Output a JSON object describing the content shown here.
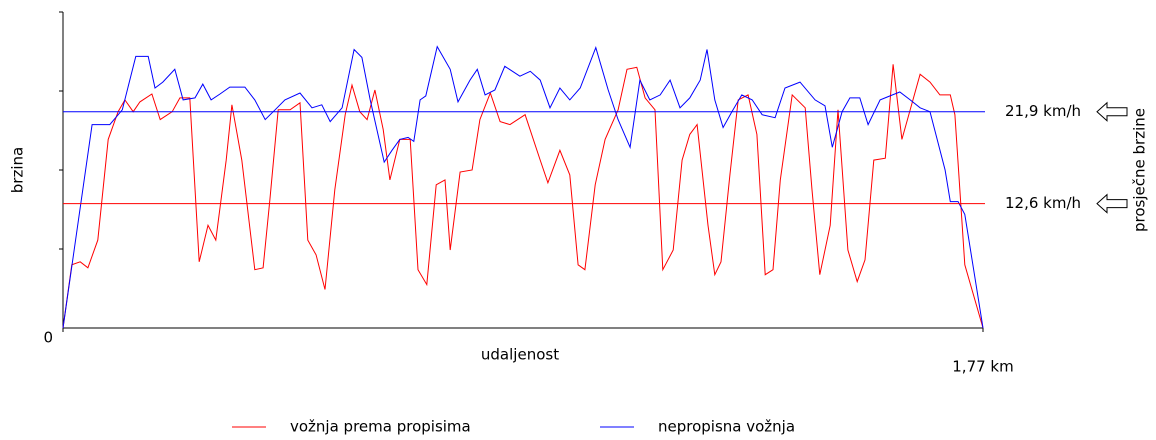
{
  "chart_data": {
    "type": "line",
    "ylabel": "brzina",
    "xlabel": "udaljenost",
    "average_label": "prosječne brzine",
    "xlim": [
      0,
      1.77
    ],
    "xticks": [
      0,
      {
        "value": 1.77,
        "label": "1,77 km"
      }
    ],
    "ylim": [
      0,
      32
    ],
    "yticks": [
      8,
      16,
      24,
      32
    ],
    "averages": [
      {
        "value": 21.9,
        "label": "21,9 km/h",
        "color": "#0000ff"
      },
      {
        "value": 12.6,
        "label": "12,6 km/h",
        "color": "#ff0000"
      }
    ],
    "series": [
      {
        "name": "vožnja prema propisima",
        "color": "#ff0000",
        "x": [
          0,
          0.017,
          0.033,
          0.048,
          0.067,
          0.087,
          0.106,
          0.119,
          0.135,
          0.148,
          0.171,
          0.187,
          0.21,
          0.225,
          0.244,
          0.262,
          0.279,
          0.294,
          0.314,
          0.325,
          0.344,
          0.369,
          0.385,
          0.398,
          0.414,
          0.437,
          0.456,
          0.471,
          0.487,
          0.504,
          0.523,
          0.543,
          0.556,
          0.571,
          0.585,
          0.6,
          0.616,
          0.629,
          0.648,
          0.668,
          0.683,
          0.7,
          0.718,
          0.735,
          0.745,
          0.764,
          0.787,
          0.802,
          0.822,
          0.841,
          0.86,
          0.889,
          0.918,
          0.933,
          0.956,
          0.975,
          0.991,
          1.004,
          1.024,
          1.043,
          1.068,
          1.085,
          1.104,
          1.12,
          1.139,
          1.154,
          1.174,
          1.191,
          1.206,
          1.22,
          1.241,
          1.254,
          1.266,
          1.283,
          1.299,
          1.318,
          1.335,
          1.351,
          1.366,
          1.38,
          1.403,
          1.428,
          1.441,
          1.456,
          1.476,
          1.491,
          1.51,
          1.528,
          1.543,
          1.56,
          1.582,
          1.597,
          1.614,
          1.63,
          1.649,
          1.668,
          1.687,
          1.707,
          1.716,
          1.735,
          1.77
        ],
        "values": [
          0,
          6.4,
          6.7,
          6.1,
          8.9,
          19.1,
          21.9,
          23.1,
          21.9,
          22.9,
          23.7,
          21.1,
          21.9,
          23.3,
          23.3,
          6.7,
          10.4,
          8.9,
          17.0,
          22.6,
          17.0,
          5.9,
          6.1,
          13.0,
          22.1,
          22.1,
          22.8,
          8.9,
          7.4,
          3.9,
          14.0,
          21.6,
          24.6,
          21.9,
          21.1,
          24.1,
          20.1,
          15.0,
          19.1,
          19.1,
          5.9,
          4.4,
          14.5,
          15.0,
          7.9,
          15.8,
          16.0,
          21.1,
          23.8,
          20.9,
          20.6,
          21.6,
          17.0,
          14.7,
          18.0,
          15.5,
          6.4,
          5.9,
          14.5,
          19.1,
          22.1,
          26.2,
          26.4,
          23.3,
          22.1,
          5.9,
          7.9,
          17.0,
          19.6,
          20.6,
          10.4,
          5.4,
          6.7,
          15.5,
          23.1,
          23.6,
          19.6,
          5.4,
          5.9,
          15.0,
          23.6,
          22.3,
          14.0,
          5.4,
          10.4,
          22.1,
          7.9,
          4.7,
          6.9,
          17.0,
          17.2,
          26.7,
          19.1,
          22.1,
          25.7,
          24.9,
          23.6,
          23.6,
          21.6,
          6.4,
          0
        ]
      },
      {
        "name": "nepropisna vožnja",
        "color": "#0000ff",
        "x": [
          0,
          0.056,
          0.09,
          0.114,
          0.14,
          0.164,
          0.177,
          0.192,
          0.215,
          0.231,
          0.254,
          0.269,
          0.285,
          0.302,
          0.321,
          0.35,
          0.369,
          0.389,
          0.408,
          0.427,
          0.456,
          0.479,
          0.498,
          0.514,
          0.537,
          0.56,
          0.575,
          0.591,
          0.618,
          0.633,
          0.648,
          0.664,
          0.675,
          0.687,
          0.698,
          0.72,
          0.745,
          0.76,
          0.783,
          0.797,
          0.812,
          0.831,
          0.85,
          0.879,
          0.899,
          0.918,
          0.937,
          0.956,
          0.975,
          0.995,
          1.025,
          1.049,
          1.068,
          1.091,
          1.11,
          1.129,
          1.149,
          1.168,
          1.187,
          1.206,
          1.226,
          1.239,
          1.254,
          1.27,
          1.287,
          1.306,
          1.326,
          1.345,
          1.37,
          1.389,
          1.418,
          1.447,
          1.466,
          1.48,
          1.499,
          1.514,
          1.533,
          1.549,
          1.572,
          1.591,
          1.61,
          1.63,
          1.649,
          1.668,
          1.697,
          1.707,
          1.722,
          1.735,
          1.77
        ],
        "values": [
          0,
          20.6,
          20.6,
          22.1,
          27.5,
          27.5,
          24.3,
          24.9,
          26.2,
          23.1,
          23.3,
          24.7,
          23.1,
          23.7,
          24.4,
          24.4,
          23.1,
          21.1,
          22.1,
          23.1,
          23.8,
          22.3,
          22.6,
          20.9,
          22.3,
          28.2,
          27.4,
          23.1,
          16.8,
          18.0,
          19.1,
          19.3,
          18.9,
          23.1,
          23.5,
          28.5,
          26.2,
          22.9,
          25.1,
          26.2,
          23.6,
          24.1,
          26.5,
          25.5,
          26.0,
          25.1,
          22.3,
          24.3,
          23.1,
          24.3,
          28.4,
          24.1,
          21.1,
          18.3,
          25.1,
          23.1,
          23.6,
          25.1,
          22.3,
          23.3,
          25.1,
          28.2,
          23.1,
          20.3,
          21.9,
          23.6,
          23.1,
          21.6,
          21.3,
          24.3,
          24.9,
          23.1,
          22.5,
          18.3,
          21.9,
          23.3,
          23.3,
          20.6,
          23.1,
          23.5,
          23.9,
          23.1,
          22.3,
          21.9,
          16.0,
          12.8,
          12.8,
          11.5,
          0
        ]
      }
    ]
  }
}
